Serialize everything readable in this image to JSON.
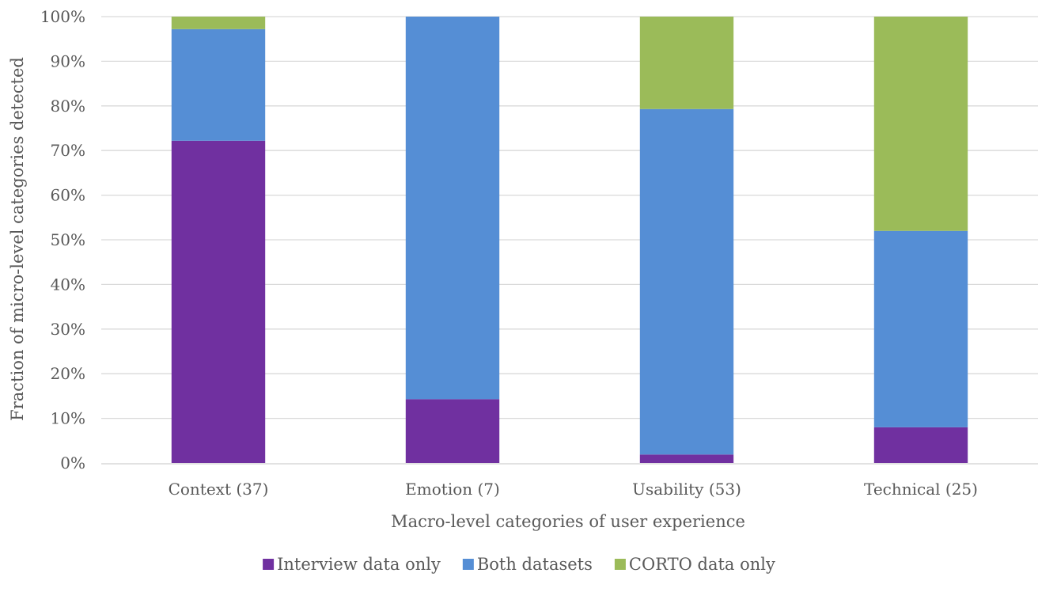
{
  "chart_data": {
    "type": "bar",
    "stacked": true,
    "percent_scale": true,
    "categories": [
      "Context (37)",
      "Emotion (7)",
      "Usability (53)",
      "Technical (25)"
    ],
    "series": [
      {
        "name": "Interview data only",
        "color": "#7030A0",
        "values": [
          72.2,
          14.3,
          1.9,
          8.0
        ]
      },
      {
        "name": "Both datasets",
        "color": "#558ED5",
        "values": [
          25.0,
          85.7,
          77.4,
          44.0
        ]
      },
      {
        "name": "CORTO data only",
        "color": "#9BBB59",
        "values": [
          2.8,
          0.0,
          20.7,
          48.0
        ]
      }
    ],
    "xlabel": "Macro-level categories of user experience",
    "ylabel": "Fraction of micro-level categories detected",
    "ylim": [
      0,
      100
    ],
    "y_ticks": [
      "0%",
      "10%",
      "20%",
      "30%",
      "40%",
      "50%",
      "60%",
      "70%",
      "80%",
      "90%",
      "100%"
    ],
    "grid": true,
    "legend_position": "bottom",
    "gridline_color": "#D9D9D9"
  }
}
